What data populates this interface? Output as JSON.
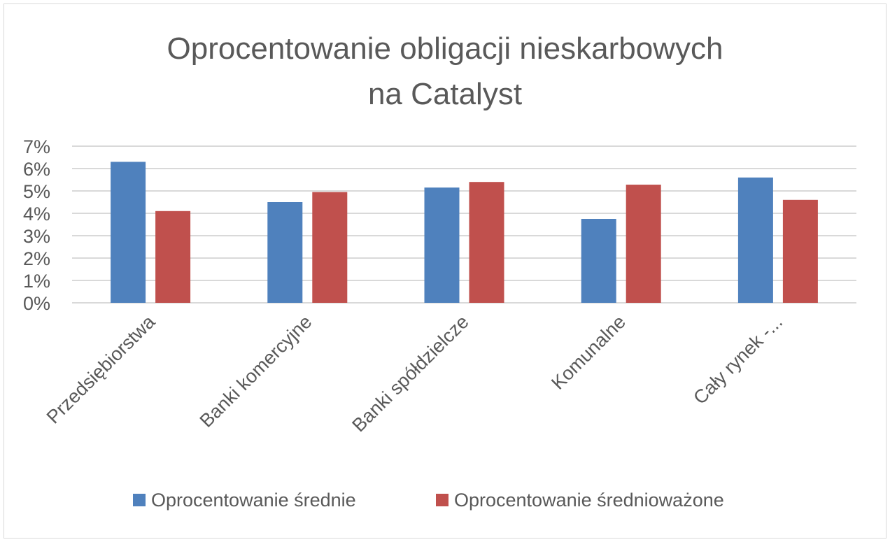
{
  "chart_data": {
    "type": "bar",
    "title_lines": [
      "Oprocentowanie obligacji nieskarbowych",
      "na Catalyst"
    ],
    "categories": [
      "Przedsiębiorstwa",
      "Banki komercyjne",
      "Banki spółdzielcze",
      "Komunalne",
      "Cały rynek -..."
    ],
    "series": [
      {
        "name": "Oprocentowanie średnie",
        "values": [
          6.3,
          4.5,
          5.15,
          3.75,
          5.6
        ],
        "color": "#4f81bd"
      },
      {
        "name": "Oprocentowanie średnioważone",
        "values": [
          4.1,
          4.95,
          5.4,
          5.28,
          4.6
        ],
        "color": "#c0504d"
      }
    ],
    "ylim": [
      0,
      7
    ],
    "yticks": [
      "0%",
      "1%",
      "2%",
      "3%",
      "4%",
      "5%",
      "6%",
      "7%"
    ],
    "grid": true,
    "legend_position": "bottom",
    "xlabel": "",
    "ylabel": ""
  }
}
